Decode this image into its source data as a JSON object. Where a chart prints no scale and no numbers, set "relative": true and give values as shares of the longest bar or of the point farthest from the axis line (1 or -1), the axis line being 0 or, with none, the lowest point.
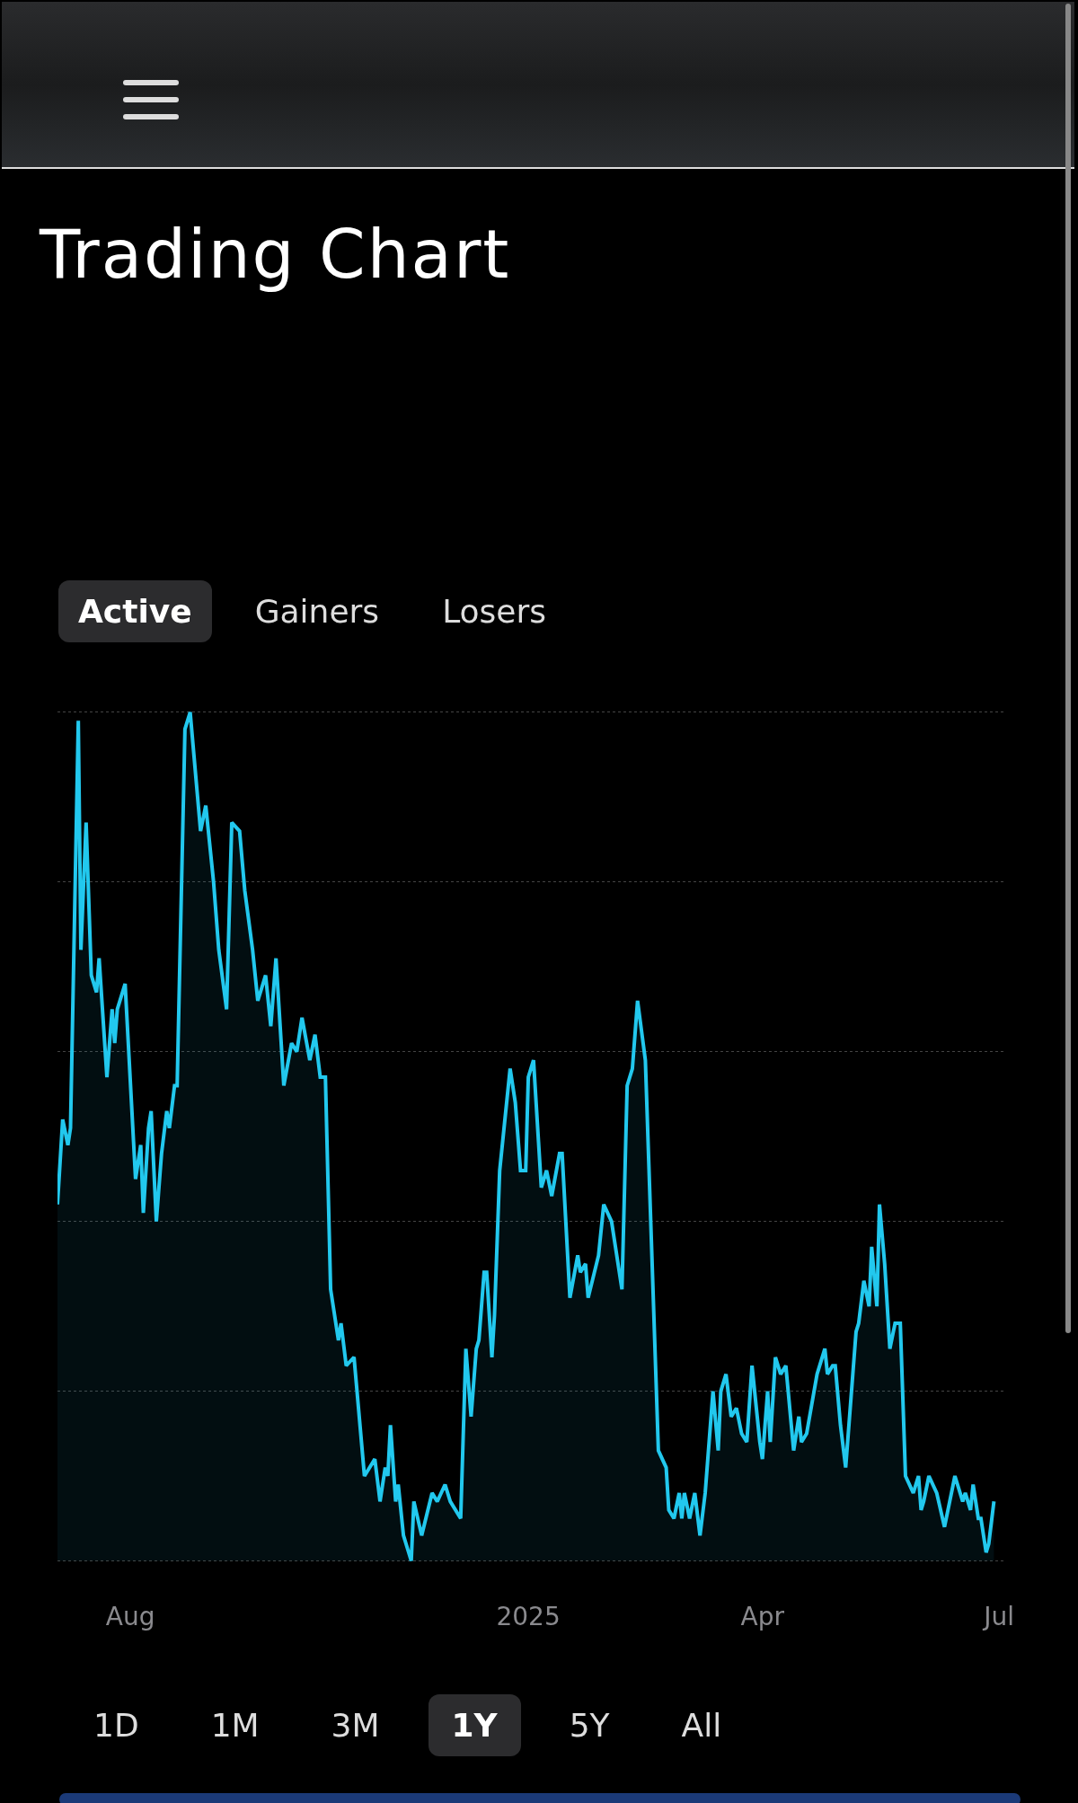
{
  "chart_data": {
    "type": "area",
    "title": "Trading Chart",
    "relative": true,
    "grid": "y",
    "annotations": [
      "Active",
      "Gainers",
      "Losers",
      "1D",
      "1M",
      "3M",
      "1Y",
      "5Y",
      "All"
    ],
    "xlim": [
      "2024-07-04",
      "2025-07-03"
    ],
    "xticks": [
      {
        "value": "2024-08-01",
        "label": "Aug"
      },
      {
        "value": "2025-01-01",
        "label": "2025"
      },
      {
        "value": "2025-04-01",
        "label": "Apr"
      },
      {
        "value": "2025-07-01",
        "label": "Jul"
      }
    ],
    "x": [
      "2024-07-04",
      "2024-07-06",
      "2024-07-08",
      "2024-07-09",
      "2024-07-12",
      "2024-07-13",
      "2024-07-15",
      "2024-07-17",
      "2024-07-19",
      "2024-07-20",
      "2024-07-23",
      "2024-07-25",
      "2024-07-26",
      "2024-07-27",
      "2024-07-30",
      "2024-08-03",
      "2024-08-05",
      "2024-08-06",
      "2024-08-08",
      "2024-08-09",
      "2024-08-11",
      "2024-08-13",
      "2024-08-15",
      "2024-08-16",
      "2024-08-18",
      "2024-08-19",
      "2024-08-22",
      "2024-08-24",
      "2024-08-28",
      "2024-08-30",
      "2024-09-02",
      "2024-09-04",
      "2024-09-07",
      "2024-09-09",
      "2024-09-12",
      "2024-09-14",
      "2024-09-17",
      "2024-09-19",
      "2024-09-22",
      "2024-09-24",
      "2024-09-26",
      "2024-09-29",
      "2024-10-02",
      "2024-10-04",
      "2024-10-06",
      "2024-10-09",
      "2024-10-11",
      "2024-10-13",
      "2024-10-15",
      "2024-10-17",
      "2024-10-20",
      "2024-10-21",
      "2024-10-23",
      "2024-10-26",
      "2024-10-30",
      "2024-11-03",
      "2024-11-05",
      "2024-11-07",
      "2024-11-08",
      "2024-11-09",
      "2024-11-11",
      "2024-11-12",
      "2024-11-14",
      "2024-11-17",
      "2024-11-18",
      "2024-11-21",
      "2024-11-25",
      "2024-11-27",
      "2024-11-30",
      "2024-12-02",
      "2024-12-06",
      "2024-12-08",
      "2024-12-10",
      "2024-12-12",
      "2024-12-13",
      "2024-12-15",
      "2024-12-16",
      "2024-12-18",
      "2024-12-19",
      "2024-12-21",
      "2024-12-25",
      "2024-12-27",
      "2024-12-29",
      "2024-12-31",
      "2025-01-01",
      "2025-01-03",
      "2025-01-06",
      "2025-01-08",
      "2025-01-10",
      "2025-01-13",
      "2025-01-14",
      "2025-01-17",
      "2025-01-20",
      "2025-01-21",
      "2025-01-23",
      "2025-01-24",
      "2025-01-28",
      "2025-01-30",
      "2025-02-02",
      "2025-02-06",
      "2025-02-08",
      "2025-02-10",
      "2025-02-12",
      "2025-02-15",
      "2025-02-20",
      "2025-02-23",
      "2025-02-24",
      "2025-02-26",
      "2025-02-28",
      "2025-03-01",
      "2025-03-02",
      "2025-03-04",
      "2025-03-06",
      "2025-03-08",
      "2025-03-10",
      "2025-03-13",
      "2025-03-15",
      "2025-03-16",
      "2025-03-18",
      "2025-03-20",
      "2025-03-22",
      "2025-03-24",
      "2025-03-26",
      "2025-03-28",
      "2025-03-31",
      "2025-04-01",
      "2025-04-03",
      "2025-04-04",
      "2025-04-06",
      "2025-04-08",
      "2025-04-10",
      "2025-04-13",
      "2025-04-15",
      "2025-04-16",
      "2025-04-18",
      "2025-04-22",
      "2025-04-25",
      "2025-04-26",
      "2025-04-28",
      "2025-04-29",
      "2025-05-01",
      "2025-05-03",
      "2025-05-07",
      "2025-05-08",
      "2025-05-10",
      "2025-05-12",
      "2025-05-13",
      "2025-05-15",
      "2025-05-16",
      "2025-05-18",
      "2025-05-20",
      "2025-05-22",
      "2025-05-24",
      "2025-05-26",
      "2025-05-29",
      "2025-05-31",
      "2025-06-01",
      "2025-06-02",
      "2025-06-04",
      "2025-06-07",
      "2025-06-10",
      "2025-06-12",
      "2025-06-14",
      "2025-06-17",
      "2025-06-18",
      "2025-06-20",
      "2025-06-21",
      "2025-06-23",
      "2025-06-24",
      "2025-06-26",
      "2025-06-27",
      "2025-06-29"
    ],
    "series": [
      {
        "color": "#22c8ee",
        "values": [
          0.42,
          0.52,
          0.49,
          0.51,
          0.99,
          0.72,
          0.87,
          0.69,
          0.67,
          0.71,
          0.57,
          0.65,
          0.61,
          0.65,
          0.68,
          0.45,
          0.49,
          0.41,
          0.51,
          0.53,
          0.4,
          0.48,
          0.53,
          0.51,
          0.56,
          0.56,
          0.98,
          1,
          0.86,
          0.89,
          0.8,
          0.72,
          0.65,
          0.87,
          0.86,
          0.79,
          0.72,
          0.66,
          0.69,
          0.63,
          0.71,
          0.56,
          0.61,
          0.6,
          0.64,
          0.59,
          0.62,
          0.57,
          0.57,
          0.32,
          0.26,
          0.28,
          0.23,
          0.24,
          0.1,
          0.12,
          0.07,
          0.11,
          0.1,
          0.16,
          0.07,
          0.09,
          0.03,
          0,
          0.07,
          0.03,
          0.08,
          0.07,
          0.09,
          0.07,
          0.05,
          0.25,
          0.17,
          0.25,
          0.26,
          0.34,
          0.34,
          0.24,
          0.29,
          0.46,
          0.58,
          0.54,
          0.46,
          0.46,
          0.57,
          0.59,
          0.44,
          0.46,
          0.43,
          0.48,
          0.48,
          0.31,
          0.36,
          0.34,
          0.35,
          0.31,
          0.36,
          0.42,
          0.4,
          0.32,
          0.56,
          0.58,
          0.66,
          0.59,
          0.13,
          0.11,
          0.06,
          0.05,
          0.08,
          0.05,
          0.08,
          0.05,
          0.08,
          0.03,
          0.08,
          0.2,
          0.13,
          0.2,
          0.22,
          0.17,
          0.18,
          0.15,
          0.14,
          0.23,
          0.14,
          0.12,
          0.2,
          0.14,
          0.24,
          0.22,
          0.23,
          0.13,
          0.17,
          0.14,
          0.15,
          0.22,
          0.25,
          0.22,
          0.23,
          0.23,
          0.16,
          0.11,
          0.27,
          0.28,
          0.33,
          0.3,
          0.37,
          0.3,
          0.42,
          0.35,
          0.25,
          0.28,
          0.28,
          0.1,
          0.08,
          0.1,
          0.06,
          0.07,
          0.1,
          0.08,
          0.04,
          0.07,
          0.1,
          0.07,
          0.08,
          0.06,
          0.09,
          0.05,
          0.05,
          0.01,
          0.02,
          0.07
        ]
      }
    ]
  }
}
